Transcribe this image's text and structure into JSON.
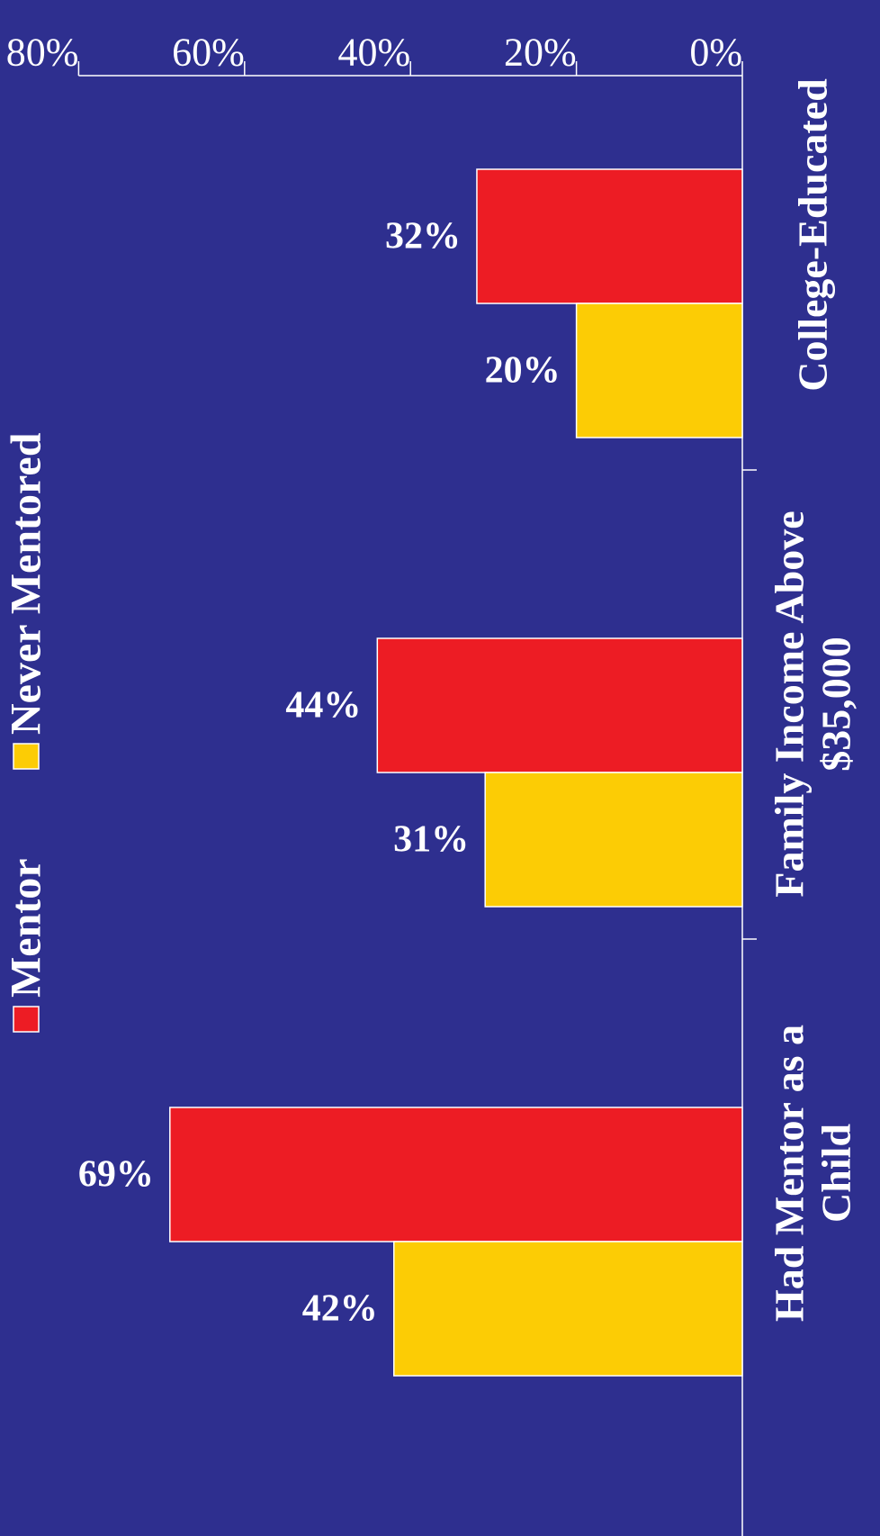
{
  "chart_data": {
    "type": "bar",
    "categories": [
      [
        "College-Educated"
      ],
      [
        "Family Income Above",
        "$35,000"
      ],
      [
        "Had Mentor as a",
        "Child"
      ]
    ],
    "series": [
      {
        "name": "Mentor",
        "color": "#ed1c24",
        "values": [
          32,
          44,
          69
        ],
        "labels": [
          "32%",
          "44%",
          "69%"
        ]
      },
      {
        "name": "Never Mentored",
        "color": "#fccc05",
        "values": [
          20,
          31,
          42
        ],
        "labels": [
          "20%",
          "31%",
          "42%"
        ]
      }
    ],
    "ylim": [
      0,
      80
    ],
    "yticks": [
      "0%",
      "20%",
      "40%",
      "60%",
      "80%"
    ],
    "background": "#2e2f8f",
    "grid": false,
    "legend_position": "top",
    "orientation": "rotated-90-clockwise"
  }
}
